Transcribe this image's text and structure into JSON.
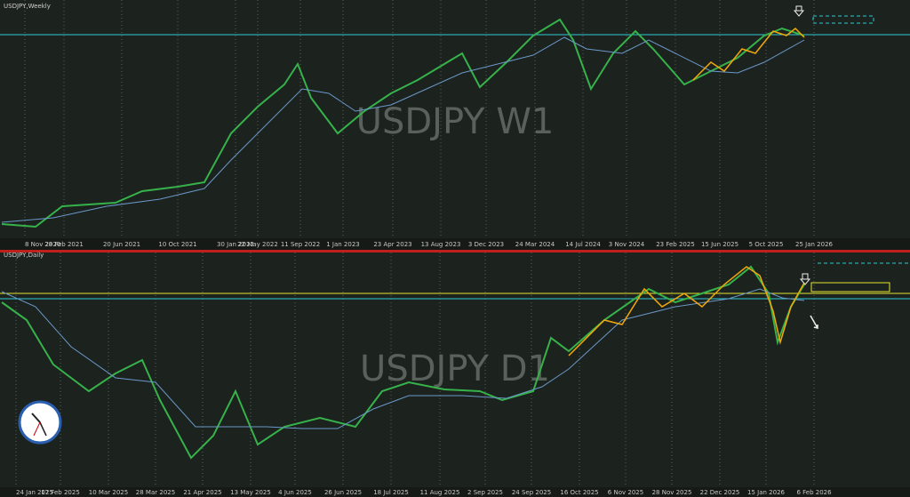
{
  "top_panel": {
    "title": "USDJPY,Weekly",
    "watermark": "USDJPY W1",
    "dates": [
      "8 Nov 2020",
      "28 Feb 2021",
      "20 Jun 2021",
      "10 Oct 2021",
      "30 Jan 2022",
      "22 May 2022",
      "11 Sep 2022",
      "1 Jan 2023",
      "23 Apr 2023",
      "13 Aug 2023",
      "3 Dec 2023",
      "24 Mar 2024",
      "14 Jul 2024",
      "3 Nov 2024",
      "23 Feb 2025",
      "15 Jun 2025",
      "5 Oct 2025",
      "25 Jan 2026"
    ]
  },
  "bottom_panel": {
    "title": "USDJPY,Daily",
    "watermark": "USDJPY D1",
    "dates": [
      "24 Jan 2025",
      "17 Feb 2025",
      "10 Mar 2025",
      "28 Mar 2025",
      "21 Apr 2025",
      "13 May 2025",
      "4 Jun 2025",
      "26 Jun 2025",
      "18 Jul 2025",
      "11 Aug 2025",
      "2 Sep 2025",
      "24 Sep 2025",
      "16 Oct 2025",
      "6 Nov 2025",
      "28 Nov 2025",
      "22 Dec 2025",
      "15 Jan 2026",
      "6 Feb 2026"
    ]
  }
}
